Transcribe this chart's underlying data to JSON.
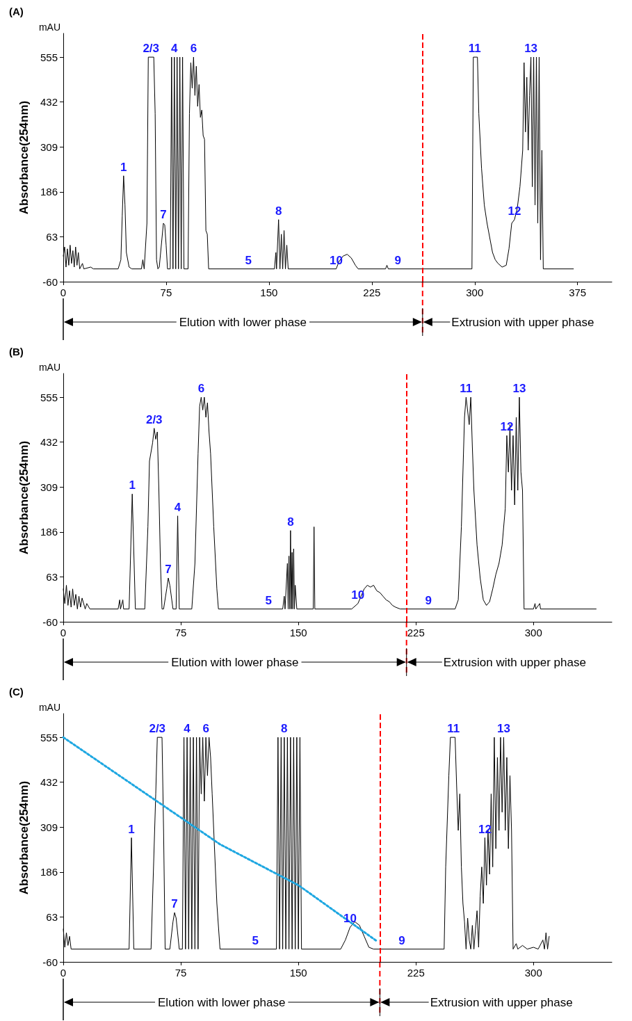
{
  "chart_data": [
    {
      "type": "line",
      "title": "(A)",
      "ylabel": "Absorbance(254nm)",
      "xlim": [
        0,
        400
      ],
      "ylim": [
        -60,
        620
      ],
      "xticks": [
        0,
        75,
        150,
        225,
        300,
        375
      ],
      "yticks": [
        -60,
        63,
        186,
        309,
        432,
        555
      ],
      "grid": false,
      "marker": "none",
      "line_style": "solid",
      "x": [
        0,
        1,
        2,
        3,
        4,
        5,
        6,
        7,
        8,
        9,
        10,
        11,
        12,
        14,
        15,
        20,
        22,
        40,
        42,
        43,
        44,
        45,
        46,
        48,
        50,
        57,
        58,
        59,
        61,
        62,
        66,
        67,
        68,
        69,
        70,
        72,
        73,
        74,
        75,
        76,
        78,
        79,
        80,
        81,
        82,
        83,
        84,
        85,
        86,
        87,
        88,
        91,
        92,
        93,
        94,
        95,
        96,
        97,
        98,
        99,
        100,
        101,
        102,
        103,
        104,
        105,
        106,
        154,
        155,
        155.5,
        157,
        158,
        159,
        160,
        161,
        162,
        163,
        164,
        199,
        201,
        204,
        207,
        210,
        213,
        215,
        235,
        236,
        237,
        298,
        299,
        302,
        303,
        305,
        307,
        309,
        311,
        313,
        315,
        317,
        320,
        323,
        325,
        327,
        329,
        331,
        333,
        335,
        336,
        337,
        338,
        339,
        340,
        341,
        342,
        343,
        344,
        345,
        346,
        347,
        348,
        349,
        350,
        372
      ],
      "series": [
        {
          "color": "#000000",
          "values": [
            10,
            35,
            -20,
            30,
            -15,
            40,
            -10,
            25,
            -20,
            35,
            -15,
            20,
            -25,
            -10,
            -25,
            -20,
            -25,
            -25,
            0,
            120,
            230,
            150,
            20,
            -20,
            -25,
            -25,
            0,
            -25,
            100,
            555,
            555,
            400,
            0,
            -25,
            -20,
            60,
            100,
            95,
            40,
            -25,
            -25,
            555,
            -25,
            555,
            -25,
            555,
            -25,
            555,
            -25,
            555,
            -25,
            -25,
            400,
            540,
            470,
            555,
            450,
            530,
            420,
            480,
            390,
            410,
            340,
            330,
            80,
            70,
            -25,
            -25,
            20,
            -25,
            110,
            -25,
            70,
            -25,
            80,
            -25,
            40,
            -25,
            -25,
            -5,
            10,
            15,
            5,
            -15,
            -25,
            -25,
            -15,
            -25,
            -25,
            555,
            555,
            400,
            250,
            150,
            100,
            60,
            20,
            0,
            -10,
            -20,
            -15,
            30,
            100,
            110,
            140,
            200,
            300,
            540,
            350,
            500,
            300,
            450,
            555,
            200,
            555,
            150,
            555,
            100,
            555,
            0,
            300,
            -25,
            -25
          ]
        }
      ],
      "ref_lines": [
        {
          "axis": "x",
          "value": 262,
          "color": "#ff0000",
          "line_style": "dashed"
        }
      ],
      "annotations": [
        "mAU",
        "Elution with lower phase",
        "Extrusion with upper phase",
        {
          "text": "1",
          "x": 44,
          "y": 230
        },
        {
          "text": "2/3",
          "x": 64,
          "y": 555
        },
        {
          "text": "4",
          "x": 81,
          "y": 555
        },
        {
          "text": "6",
          "x": 95,
          "y": 555
        },
        {
          "text": "7",
          "x": 73,
          "y": 100
        },
        {
          "text": "8",
          "x": 157,
          "y": 110
        },
        {
          "text": "5",
          "x": 135,
          "y": -25
        },
        {
          "text": "10",
          "x": 199,
          "y": -25
        },
        {
          "text": "9",
          "x": 244,
          "y": -25
        },
        {
          "text": "11",
          "x": 300,
          "y": 555
        },
        {
          "text": "12",
          "x": 329,
          "y": 110
        },
        {
          "text": "13",
          "x": 341,
          "y": 555
        }
      ]
    },
    {
      "type": "line",
      "title": "(B)",
      "ylabel": "Absorbance(254nm)",
      "xlim": [
        0,
        350
      ],
      "ylim": [
        -60,
        620
      ],
      "xticks": [
        0,
        75,
        150,
        225,
        300
      ],
      "yticks": [
        -60,
        63,
        186,
        309,
        432,
        555
      ],
      "grid": false,
      "marker": "none",
      "line_style": "solid",
      "x": [
        0,
        1,
        2,
        3,
        4,
        5,
        6,
        7,
        8,
        9,
        10,
        11,
        12,
        14,
        15,
        17,
        35,
        36,
        36.5,
        38,
        38.5,
        42,
        44,
        46,
        52,
        54,
        55,
        57,
        58,
        59,
        60,
        61,
        62,
        63,
        64,
        66,
        67,
        68,
        70,
        72,
        73,
        74,
        82,
        84,
        86,
        87,
        88,
        89,
        90,
        91,
        92,
        93,
        94,
        96,
        98,
        99,
        140,
        141,
        141.5,
        143,
        143.5,
        144,
        144.5,
        145,
        145.5,
        146,
        146.5,
        147,
        147.5,
        148,
        149,
        159.5,
        160,
        160.5,
        184,
        188,
        190,
        192,
        194,
        196,
        198,
        200,
        202,
        204,
        206,
        208,
        210,
        212,
        215,
        250,
        252,
        254,
        256,
        257,
        259,
        260,
        261,
        262,
        264,
        266,
        268,
        270,
        272,
        274,
        276,
        278,
        280,
        282,
        283,
        284,
        285,
        286,
        287,
        288,
        289,
        290,
        291,
        292,
        293,
        294,
        300,
        301,
        301.5,
        304,
        304.5,
        340
      ],
      "series": [
        {
          "color": "#000000",
          "values": [
            30,
            -10,
            40,
            -15,
            25,
            -20,
            30,
            -15,
            15,
            -25,
            10,
            -20,
            5,
            -25,
            -10,
            -25,
            -25,
            0,
            -25,
            0,
            -25,
            -25,
            290,
            -25,
            -25,
            200,
            380,
            430,
            470,
            440,
            460,
            300,
            100,
            -25,
            -25,
            30,
            60,
            40,
            -25,
            -25,
            230,
            -25,
            -25,
            100,
            400,
            530,
            555,
            520,
            555,
            500,
            540,
            460,
            400,
            200,
            30,
            -25,
            -25,
            10,
            -25,
            100,
            -25,
            120,
            -25,
            190,
            -25,
            130,
            -25,
            140,
            -25,
            40,
            -25,
            -25,
            200,
            -25,
            -25,
            -10,
            10,
            30,
            40,
            35,
            40,
            25,
            20,
            10,
            0,
            -5,
            -15,
            -20,
            -25,
            -25,
            0,
            200,
            500,
            555,
            480,
            555,
            420,
            300,
            150,
            60,
            0,
            -15,
            -5,
            30,
            70,
            100,
            150,
            250,
            450,
            350,
            480,
            300,
            450,
            260,
            500,
            300,
            555,
            350,
            300,
            -25,
            -25,
            -10,
            -25,
            -10,
            -25,
            -25
          ]
        }
      ],
      "ref_lines": [
        {
          "axis": "x",
          "value": 219,
          "color": "#ff0000",
          "line_style": "dashed"
        }
      ],
      "annotations": [
        "mAU",
        "Elution with lower phase",
        "Extrusion with upper phase",
        {
          "text": "1",
          "x": 44,
          "y": 290
        },
        {
          "text": "2/3",
          "x": 58,
          "y": 470
        },
        {
          "text": "4",
          "x": 73,
          "y": 230
        },
        {
          "text": "6",
          "x": 88,
          "y": 555
        },
        {
          "text": "7",
          "x": 67,
          "y": 60
        },
        {
          "text": "8",
          "x": 145,
          "y": 190
        },
        {
          "text": "5",
          "x": 131,
          "y": -25
        },
        {
          "text": "10",
          "x": 188,
          "y": -10
        },
        {
          "text": "9",
          "x": 233,
          "y": -25
        },
        {
          "text": "11",
          "x": 257,
          "y": 555
        },
        {
          "text": "12",
          "x": 283,
          "y": 450
        },
        {
          "text": "13",
          "x": 291,
          "y": 555
        }
      ]
    },
    {
      "type": "line",
      "title": "(C)",
      "ylabel": "Absorbance(254nm)",
      "xlim": [
        0,
        350
      ],
      "ylim": [
        -60,
        620
      ],
      "xticks": [
        0,
        75,
        150,
        225,
        300
      ],
      "yticks": [
        -60,
        63,
        186,
        309,
        432,
        555
      ],
      "grid": false,
      "marker": "none",
      "line_style": "solid",
      "x": [
        0,
        1,
        2,
        3,
        4,
        5,
        42,
        43.5,
        45,
        56,
        59,
        60,
        63,
        64,
        65,
        68,
        70,
        71,
        72,
        74,
        76,
        77,
        78,
        79,
        80,
        81,
        82,
        83,
        84,
        85,
        86,
        87,
        88,
        89,
        90,
        91,
        92,
        93,
        94,
        95,
        96,
        98,
        100,
        136,
        137,
        138,
        139,
        140,
        141,
        142,
        143,
        144,
        145,
        146,
        147,
        148,
        149,
        150,
        151,
        152,
        177,
        180,
        183,
        186,
        189,
        192,
        195,
        198,
        243,
        244,
        246,
        247,
        250,
        251,
        252,
        253,
        254,
        255,
        256,
        257,
        258,
        259,
        260,
        261,
        262,
        263,
        264,
        265,
        266,
        267,
        268,
        269,
        270,
        271,
        272,
        273,
        274,
        275,
        276,
        277,
        278,
        279,
        280,
        281,
        282,
        283,
        284,
        285,
        286,
        287,
        289,
        290,
        293,
        296,
        300,
        303,
        306,
        307,
        308,
        309,
        310
      ],
      "series": [
        {
          "color": "#000000",
          "values": [
            30,
            -20,
            20,
            -15,
            10,
            -25,
            -25,
            280,
            -25,
            -25,
            400,
            555,
            555,
            300,
            -25,
            -25,
            50,
            75,
            60,
            -25,
            -25,
            555,
            -25,
            555,
            -25,
            555,
            -25,
            555,
            -25,
            555,
            -25,
            555,
            400,
            555,
            380,
            555,
            450,
            555,
            500,
            400,
            300,
            100,
            -25,
            -25,
            555,
            -25,
            555,
            -25,
            555,
            -25,
            555,
            -25,
            555,
            -25,
            555,
            -25,
            555,
            -25,
            555,
            -25,
            -25,
            0,
            35,
            50,
            40,
            10,
            -20,
            -25,
            -25,
            200,
            450,
            555,
            555,
            420,
            300,
            400,
            200,
            100,
            50,
            -25,
            60,
            0,
            -25,
            40,
            -25,
            30,
            80,
            -20,
            120,
            200,
            100,
            280,
            150,
            300,
            180,
            400,
            200,
            555,
            250,
            500,
            300,
            555,
            350,
            555,
            300,
            500,
            250,
            450,
            300,
            -25,
            -10,
            -25,
            -15,
            -25,
            -20,
            -25,
            0,
            -25,
            20,
            -25,
            10
          ]
        },
        {
          "color": "#1ea7e1",
          "line_style": "dotted",
          "x": [
            0,
            100,
            150,
            200
          ],
          "values": [
            555,
            262,
            150,
            -3
          ]
        }
      ],
      "ref_lines": [
        {
          "axis": "x",
          "value": 202,
          "color": "#ff0000",
          "line_style": "dashed"
        }
      ],
      "annotations": [
        "mAU",
        "Elution with lower phase",
        "Extrusion with upper phase",
        {
          "text": "1",
          "x": 43.5,
          "y": 280
        },
        {
          "text": "2/3",
          "x": 60,
          "y": 555
        },
        {
          "text": "4",
          "x": 79,
          "y": 555
        },
        {
          "text": "6",
          "x": 91,
          "y": 555
        },
        {
          "text": "7",
          "x": 71,
          "y": 75
        },
        {
          "text": "8",
          "x": 141,
          "y": 555
        },
        {
          "text": "5",
          "x": 122.5,
          "y": -25
        },
        {
          "text": "10",
          "x": 183,
          "y": 35
        },
        {
          "text": "9",
          "x": 216,
          "y": -25
        },
        {
          "text": "11",
          "x": 249,
          "y": 555
        },
        {
          "text": "12",
          "x": 269,
          "y": 280
        },
        {
          "text": "13",
          "x": 281,
          "y": 555
        }
      ]
    }
  ]
}
